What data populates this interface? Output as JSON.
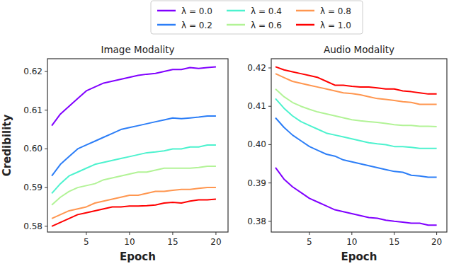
{
  "chart_data": [
    {
      "type": "line",
      "title": "Image Modality",
      "x_label": "Epoch",
      "y_label": "Credibility",
      "legend": "top",
      "x": [
        1,
        2,
        3,
        4,
        5,
        6,
        7,
        8,
        9,
        10,
        11,
        12,
        13,
        14,
        15,
        16,
        17,
        18,
        19,
        20
      ],
      "xlim": [
        0.5,
        21.4
      ],
      "xticks": [
        5,
        10,
        15,
        20
      ],
      "ylim": [
        0.5785,
        0.6233
      ],
      "yticks": [
        0.58,
        0.59,
        {
          "value": 0.6,
          "label": "0.60"
        },
        0.61,
        0.62
      ],
      "grid": false,
      "series": [
        {
          "name": "λ = 0.0",
          "color": "#8000ff",
          "values": [
            0.606,
            0.609,
            0.611,
            0.613,
            0.615,
            0.616,
            0.617,
            0.6175,
            0.618,
            0.6185,
            0.619,
            0.6193,
            0.6195,
            0.62,
            0.6205,
            0.6205,
            0.621,
            0.6208,
            0.621,
            0.6212
          ]
        },
        {
          "name": "λ = 0.2",
          "color": "#2c7ef7",
          "values": [
            0.593,
            0.596,
            0.598,
            0.6,
            0.601,
            0.602,
            0.603,
            0.604,
            0.605,
            0.6055,
            0.606,
            0.6065,
            0.607,
            0.6075,
            0.608,
            0.6078,
            0.608,
            0.6082,
            0.6085,
            0.6085
          ]
        },
        {
          "name": "λ = 0.4",
          "color": "#4cf2ce",
          "values": [
            0.5885,
            0.591,
            0.593,
            0.594,
            0.595,
            0.596,
            0.5965,
            0.597,
            0.5975,
            0.598,
            0.5985,
            0.599,
            0.5992,
            0.5995,
            0.6,
            0.6,
            0.6005,
            0.6005,
            0.601,
            0.601
          ]
        },
        {
          "name": "λ = 0.6",
          "color": "#b2f396",
          "values": [
            0.5855,
            0.5875,
            0.589,
            0.59,
            0.5905,
            0.591,
            0.592,
            0.5925,
            0.593,
            0.5935,
            0.594,
            0.594,
            0.5945,
            0.595,
            0.595,
            0.595,
            0.595,
            0.5952,
            0.5955,
            0.5955
          ]
        },
        {
          "name": "λ = 0.8",
          "color": "#ff964f",
          "values": [
            0.582,
            0.583,
            0.584,
            0.5845,
            0.585,
            0.586,
            0.5865,
            0.587,
            0.5875,
            0.588,
            0.588,
            0.5885,
            0.589,
            0.589,
            0.5893,
            0.5895,
            0.5895,
            0.5898,
            0.59,
            0.59
          ]
        },
        {
          "name": "λ = 1.0",
          "color": "#ff0000",
          "values": [
            0.58,
            0.581,
            0.582,
            0.583,
            0.5835,
            0.584,
            0.5845,
            0.585,
            0.585,
            0.5852,
            0.5852,
            0.5853,
            0.5855,
            0.586,
            0.5862,
            0.586,
            0.5865,
            0.5868,
            0.5868,
            0.587
          ]
        }
      ]
    },
    {
      "type": "line",
      "title": "Audio Modality",
      "x_label": "Epoch",
      "x": [
        1,
        2,
        3,
        4,
        5,
        6,
        7,
        8,
        9,
        10,
        11,
        12,
        13,
        14,
        15,
        16,
        17,
        18,
        19,
        20
      ],
      "xlim": [
        0.5,
        21.2
      ],
      "xticks": [
        5,
        10,
        15,
        20
      ],
      "ylim": [
        0.3772,
        0.4224
      ],
      "yticks": [
        0.38,
        0.39,
        {
          "value": 0.4,
          "label": "0.40"
        },
        0.41,
        0.42
      ],
      "grid": false,
      "series": [
        {
          "color": "#8000ff",
          "values": [
            0.394,
            0.391,
            0.389,
            0.3875,
            0.386,
            0.385,
            0.384,
            0.383,
            0.3825,
            0.382,
            0.3815,
            0.381,
            0.3808,
            0.3803,
            0.38,
            0.3798,
            0.3795,
            0.3795,
            0.379,
            0.379
          ]
        },
        {
          "color": "#2c7ef7",
          "values": [
            0.407,
            0.4045,
            0.4025,
            0.401,
            0.3995,
            0.3985,
            0.3975,
            0.397,
            0.396,
            0.3955,
            0.395,
            0.3945,
            0.394,
            0.3935,
            0.393,
            0.3928,
            0.392,
            0.3918,
            0.3915,
            0.3915
          ]
        },
        {
          "color": "#4cf2ce",
          "values": [
            0.412,
            0.4095,
            0.4075,
            0.406,
            0.405,
            0.404,
            0.403,
            0.4025,
            0.402,
            0.4015,
            0.401,
            0.4005,
            0.4002,
            0.4,
            0.3995,
            0.3995,
            0.3993,
            0.399,
            0.399,
            0.399
          ]
        },
        {
          "color": "#b2f396",
          "values": [
            0.4145,
            0.4125,
            0.411,
            0.41,
            0.4092,
            0.4085,
            0.408,
            0.4075,
            0.407,
            0.4065,
            0.4062,
            0.406,
            0.4058,
            0.4055,
            0.4052,
            0.405,
            0.405,
            0.4048,
            0.4048,
            0.4047
          ]
        },
        {
          "color": "#ff964f",
          "values": [
            0.4185,
            0.4175,
            0.4165,
            0.416,
            0.4155,
            0.415,
            0.4145,
            0.414,
            0.4135,
            0.4133,
            0.413,
            0.4125,
            0.412,
            0.4118,
            0.4115,
            0.4112,
            0.411,
            0.4105,
            0.4105,
            0.4105
          ]
        },
        {
          "color": "#ff0000",
          "values": [
            0.4203,
            0.4195,
            0.419,
            0.4185,
            0.418,
            0.4175,
            0.4165,
            0.4155,
            0.4155,
            0.4152,
            0.415,
            0.415,
            0.4148,
            0.4145,
            0.4145,
            0.414,
            0.4138,
            0.4135,
            0.4132,
            0.4132
          ]
        }
      ]
    }
  ]
}
